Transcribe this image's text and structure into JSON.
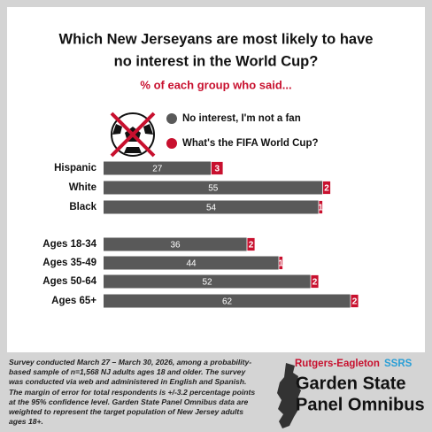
{
  "chart_data": {
    "type": "stacked-bar",
    "title": [
      "Which New Jerseyans are most likely to have",
      "no interest in the World Cup?"
    ],
    "subtitle": "% of each group who said...",
    "categories": [
      "Hispanic",
      "White",
      "Black",
      "Ages 18-34",
      "Ages 35-49",
      "Ages 50-64",
      "Ages 65+"
    ],
    "series": [
      {
        "name": "No interest, I'm not a fan",
        "color": "#595959",
        "values": [
          27,
          55,
          54,
          36,
          44,
          52,
          62
        ]
      },
      {
        "name": "What's the FIFA World Cup?",
        "color": "#c8102e",
        "values": [
          3,
          2,
          1,
          2,
          1,
          2,
          2
        ]
      }
    ],
    "note": "Survey conducted March 27 – March 30, 2026, among a probability-based sample of n=1,568 NJ adults ages 18 and older. The survey was conducted via web and administered in English and Spanish. The margin of error for total respondents is +/-3.2 percentage points at the 95% confidence level. Garden State Panel Omnibus data are weighted to represent the target population of New Jersey adults ages 18+.",
    "logo": {
      "org": "Rutgers-Eagleton",
      "partner": "SSRS",
      "line1": "Garden State",
      "line2": "Panel Omnibus"
    }
  }
}
